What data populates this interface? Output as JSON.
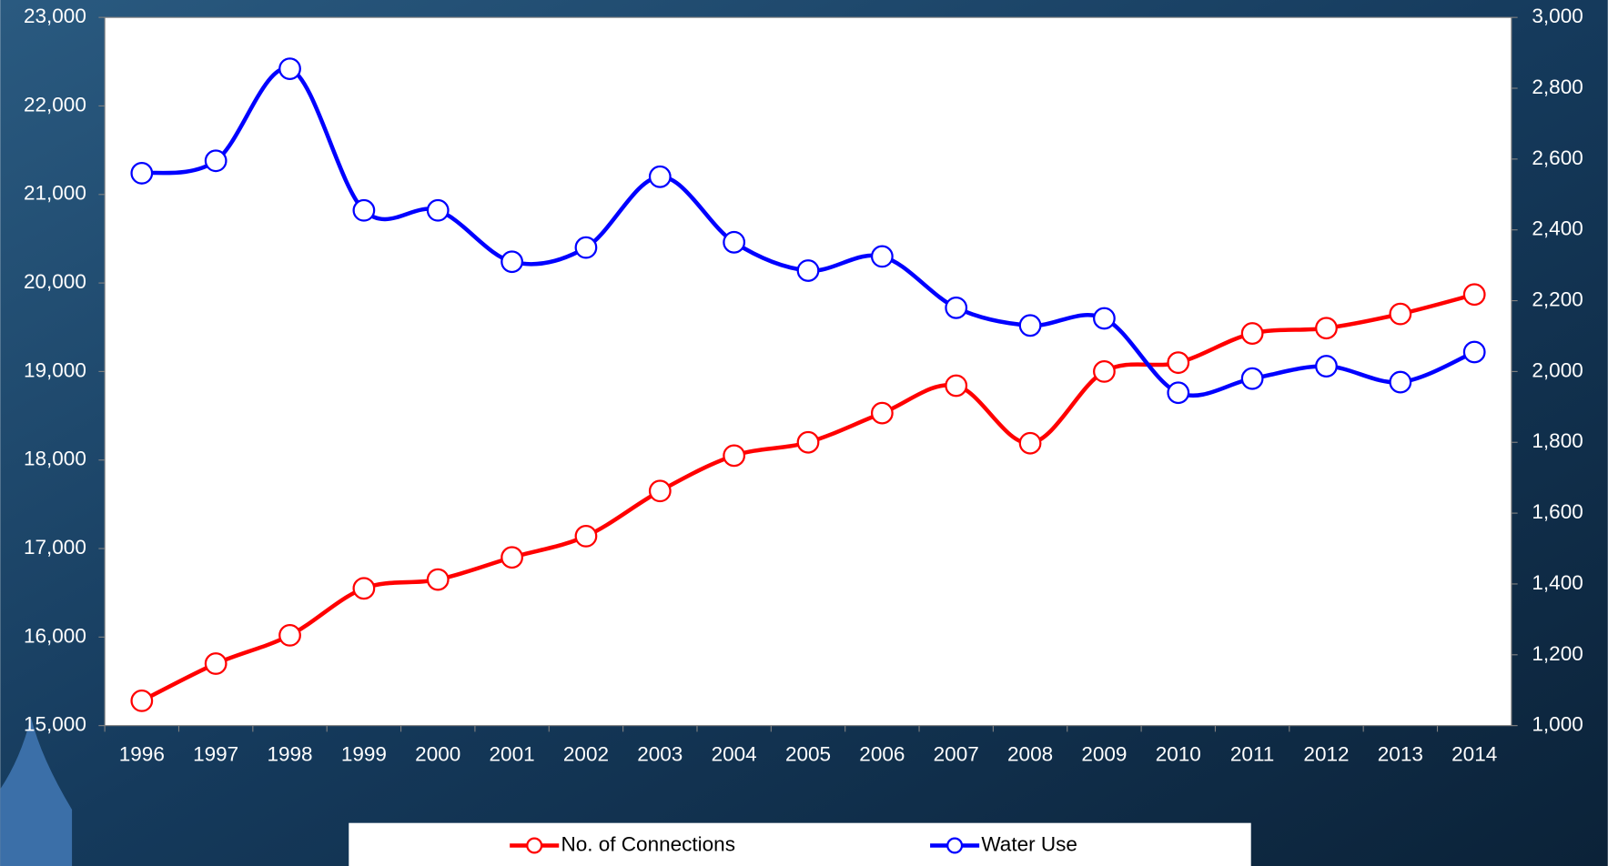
{
  "chart_data": {
    "type": "line",
    "categories": [
      "1996",
      "1997",
      "1998",
      "1999",
      "2000",
      "2001",
      "2002",
      "2003",
      "2004",
      "2005",
      "2006",
      "2007",
      "2008",
      "2009",
      "2010",
      "2011",
      "2012",
      "2013",
      "2014"
    ],
    "series": [
      {
        "name": "No. of Connections",
        "color": "#ff0000",
        "axis": "y",
        "values": [
          15280,
          15700,
          16020,
          16550,
          16650,
          16900,
          17140,
          17650,
          18050,
          18200,
          18530,
          18840,
          18190,
          19000,
          19100,
          19430,
          19490,
          19650,
          19870
        ]
      },
      {
        "name": "Water Use",
        "color": "#0000ff",
        "axis": "y2",
        "values": [
          2560,
          2595,
          2855,
          2455,
          2455,
          2310,
          2350,
          2550,
          2365,
          2285,
          2325,
          2180,
          2130,
          2150,
          1940,
          1980,
          2015,
          1970,
          2055
        ]
      }
    ],
    "ylim": [
      15000,
      23000
    ],
    "yticks": [
      {
        "value": 15000,
        "label": "15,000"
      },
      {
        "value": 16000,
        "label": "16,000"
      },
      {
        "value": 17000,
        "label": "17,000"
      },
      {
        "value": 18000,
        "label": "18,000"
      },
      {
        "value": 19000,
        "label": "19,000"
      },
      {
        "value": 20000,
        "label": "20,000"
      },
      {
        "value": 21000,
        "label": "21,000"
      },
      {
        "value": 22000,
        "label": "22,000"
      },
      {
        "value": 23000,
        "label": "23,000"
      }
    ],
    "y2lim": [
      1000,
      3000
    ],
    "y2ticks": [
      {
        "value": 1000,
        "label": "1,000"
      },
      {
        "value": 1200,
        "label": "1,200"
      },
      {
        "value": 1400,
        "label": "1,400"
      },
      {
        "value": 1600,
        "label": "1,600"
      },
      {
        "value": 1800,
        "label": "1,800"
      },
      {
        "value": 2000,
        "label": "2,000"
      },
      {
        "value": 2200,
        "label": "2,200"
      },
      {
        "value": 2400,
        "label": "2,400"
      },
      {
        "value": 2600,
        "label": "2,600"
      },
      {
        "value": 2800,
        "label": "2,800"
      },
      {
        "value": 3000,
        "label": "3,000"
      }
    ],
    "legend": "bottom",
    "grid": false
  }
}
